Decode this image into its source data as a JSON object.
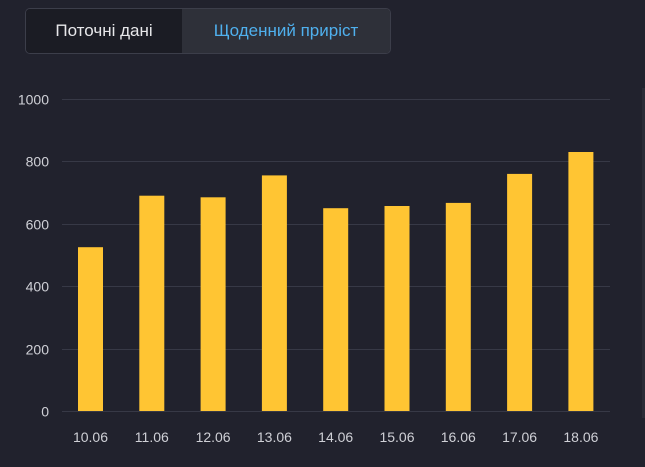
{
  "tabs": {
    "current_label": "Поточні дані",
    "daily_label": "Щоденний приріст",
    "active": "daily"
  },
  "colors": {
    "background": "#21222d",
    "bar": "#ffc533",
    "grid": "#373946",
    "tick_text": "#cfd0d6",
    "tab_active_text": "#4fb0ee"
  },
  "chart_data": {
    "type": "bar",
    "title": "",
    "xlabel": "",
    "ylabel": "",
    "categories": [
      "10.06",
      "11.06",
      "12.06",
      "13.06",
      "14.06",
      "15.06",
      "16.06",
      "17.06",
      "18.06"
    ],
    "values": [
      525,
      690,
      685,
      755,
      650,
      657,
      667,
      760,
      830
    ],
    "ylim": [
      0,
      1000
    ],
    "yticks": [
      0,
      200,
      400,
      600,
      800,
      1000
    ],
    "grid": true,
    "legend": "none"
  }
}
